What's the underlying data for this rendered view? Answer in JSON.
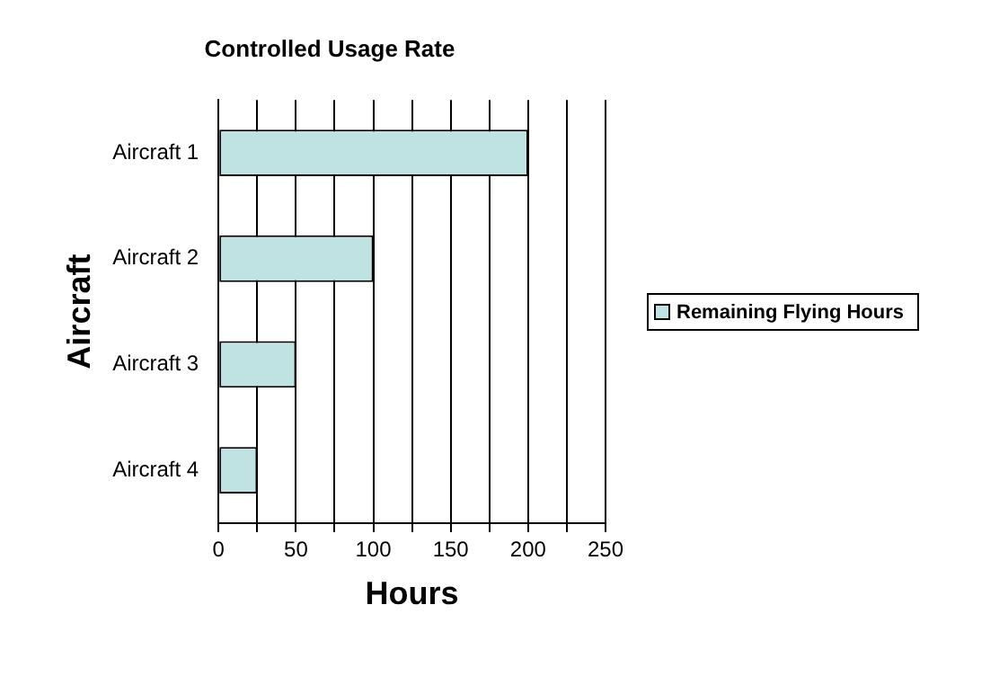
{
  "chart_data": {
    "type": "bar",
    "orientation": "horizontal",
    "title": "Controlled Usage Rate",
    "xlabel": "Hours",
    "ylabel": "Aircraft",
    "categories": [
      "Aircraft 1",
      "Aircraft 2",
      "Aircraft 3",
      "Aircraft 4"
    ],
    "series": [
      {
        "name": "Remaining Flying Hours",
        "color": "#bfe3e3",
        "values": [
          200,
          100,
          50,
          25
        ]
      }
    ],
    "xlim": [
      0,
      250
    ],
    "xticks": [
      0,
      {
        "value": 25,
        "label": null
      },
      50,
      {
        "value": 75,
        "label": null
      },
      100,
      {
        "value": 125,
        "label": null
      },
      150,
      {
        "value": 175,
        "label": null
      },
      200,
      {
        "value": 225,
        "label": null
      },
      250
    ],
    "grid": "x",
    "legend": "right"
  }
}
